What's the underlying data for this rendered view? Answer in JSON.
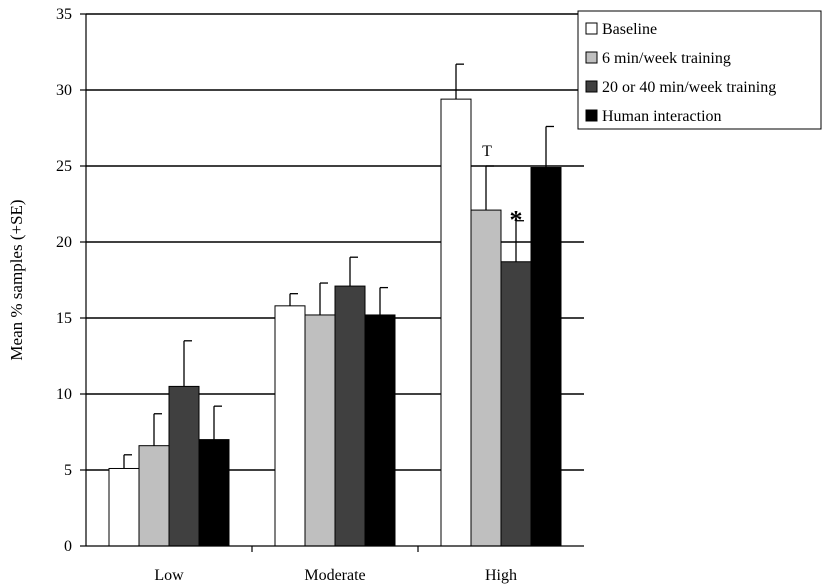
{
  "chart_data": {
    "type": "bar",
    "title": "",
    "xlabel": "",
    "ylabel": "Mean % samples (+SE)",
    "ylim": [
      0,
      35
    ],
    "yticks": [
      0,
      5,
      10,
      15,
      20,
      25,
      30,
      35
    ],
    "grid": true,
    "legend_position": "top-right",
    "categories": [
      "Low",
      "Moderate",
      "High"
    ],
    "series": [
      {
        "name": "Baseline",
        "color": "#ffffff",
        "values": [
          5.1,
          15.8,
          29.4
        ],
        "errors": [
          0.9,
          0.8,
          2.3
        ]
      },
      {
        "name": "6 min/week training",
        "color": "#bfbfbf",
        "values": [
          6.6,
          15.2,
          22.1
        ],
        "errors": [
          2.1,
          2.1,
          2.9
        ]
      },
      {
        "name": "20 or 40 min/week training",
        "color": "#404040",
        "values": [
          10.5,
          17.1,
          18.7
        ],
        "errors": [
          3.0,
          1.9,
          2.7
        ]
      },
      {
        "name": "Human interaction",
        "color": "#000000",
        "values": [
          7.0,
          15.2,
          24.9
        ],
        "errors": [
          2.2,
          1.8,
          2.7
        ]
      }
    ],
    "annotations": [
      {
        "text": "T",
        "category": "High",
        "series": "6 min/week training"
      },
      {
        "text": "*",
        "category": "High",
        "series": "20 or 40 min/week training"
      }
    ]
  }
}
